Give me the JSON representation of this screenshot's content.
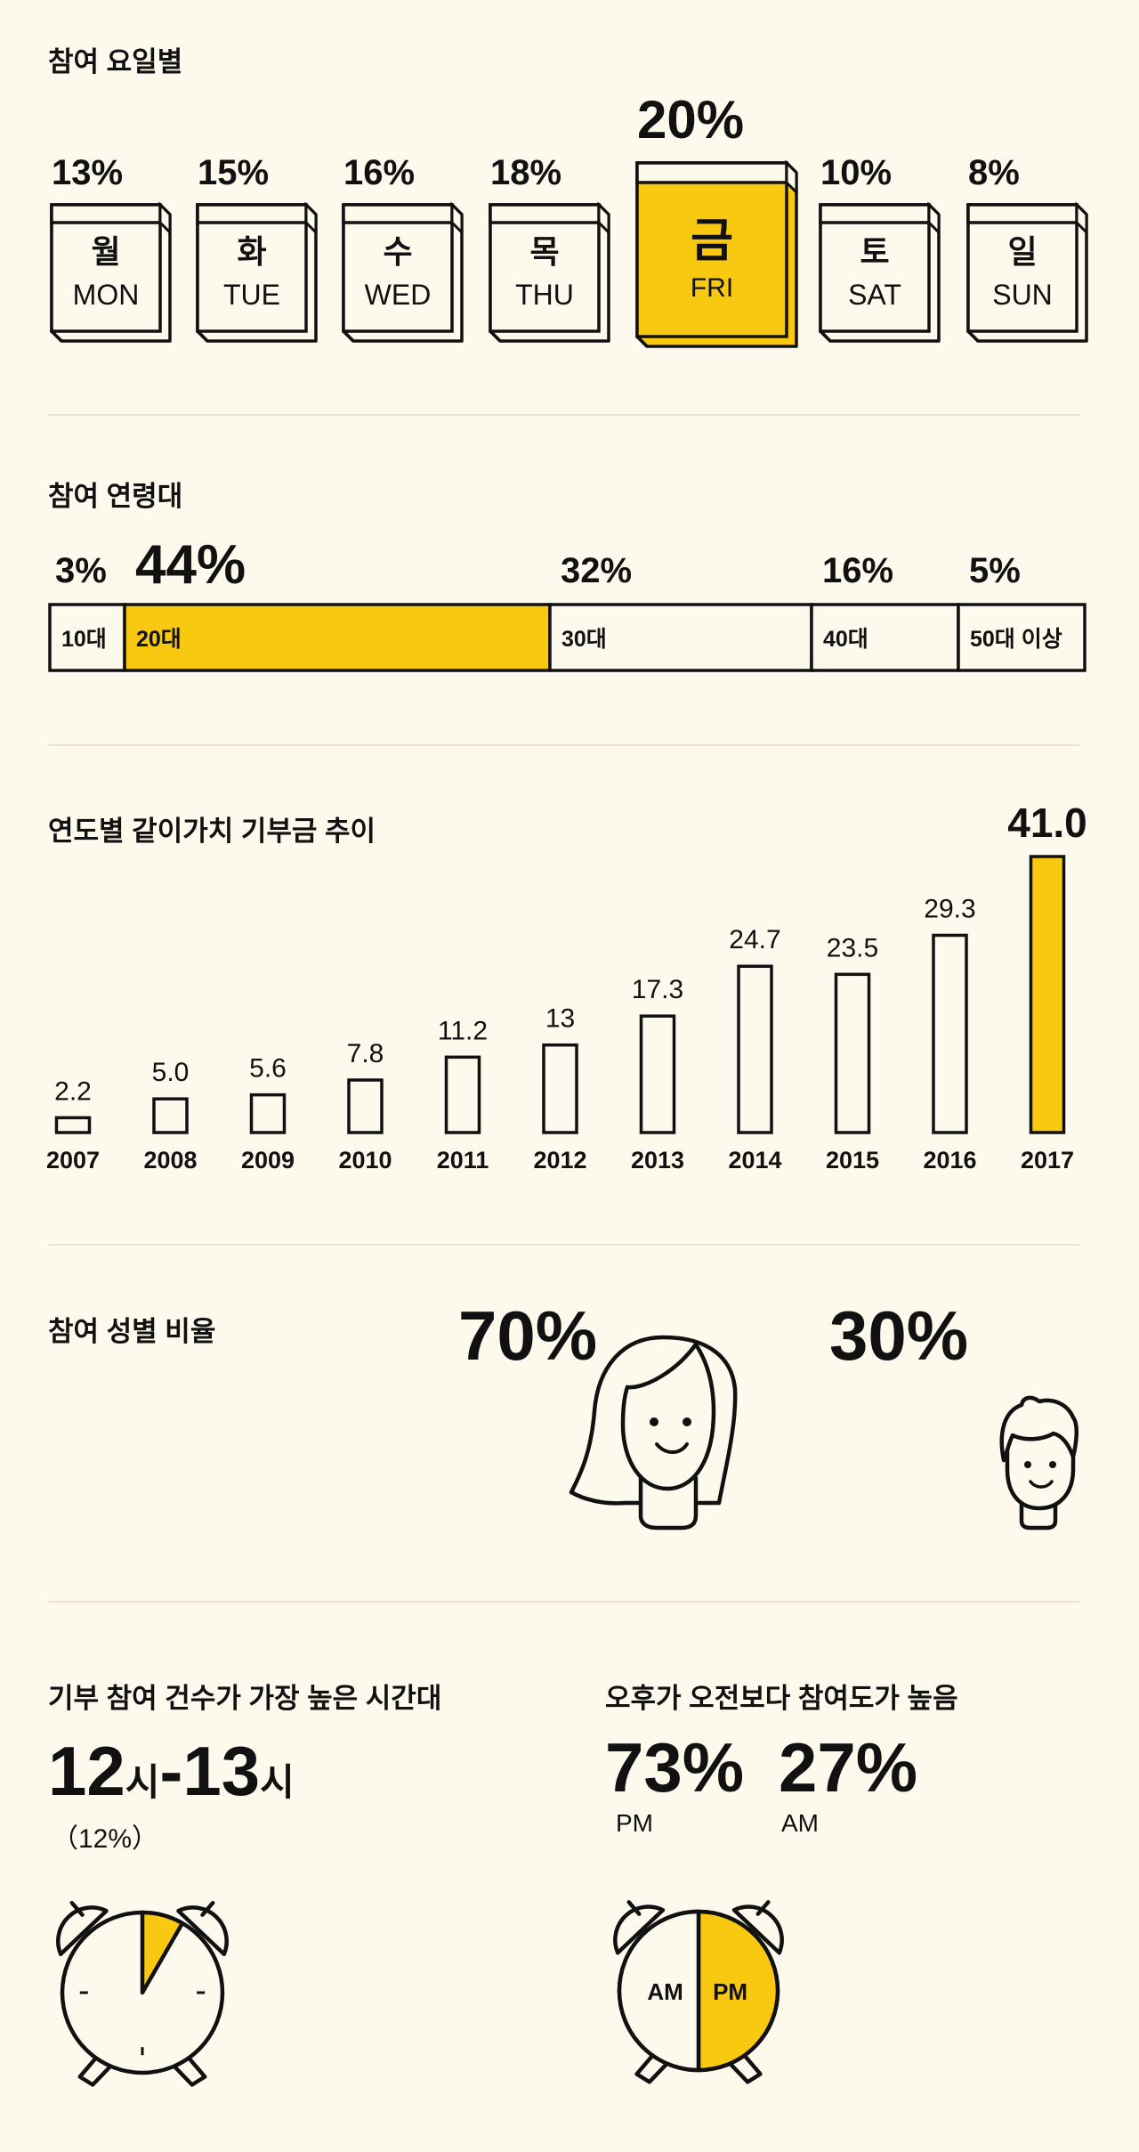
{
  "colors": {
    "accent": "#f9c911",
    "background": "#fdf9ec",
    "ink": "#111111"
  },
  "chart_data": [
    {
      "type": "bar",
      "title": "참여 요일별",
      "categories": [
        {
          "ko": "월",
          "en": "MON"
        },
        {
          "ko": "화",
          "en": "TUE"
        },
        {
          "ko": "수",
          "en": "WED"
        },
        {
          "ko": "목",
          "en": "THU"
        },
        {
          "ko": "금",
          "en": "FRI"
        },
        {
          "ko": "토",
          "en": "SAT"
        },
        {
          "ko": "일",
          "en": "SUN"
        }
      ],
      "values": [
        13,
        15,
        16,
        18,
        20,
        10,
        8
      ],
      "value_labels": [
        "13%",
        "15%",
        "16%",
        "18%",
        "20%",
        "10%",
        "8%"
      ],
      "highlight": "FRI"
    },
    {
      "type": "bar",
      "title": "참여 연령대",
      "stacked": true,
      "categories": [
        "10대",
        "20대",
        "30대",
        "40대",
        "50대 이상"
      ],
      "values": [
        3,
        44,
        32,
        16,
        5
      ],
      "value_labels": [
        "3%",
        "44%",
        "32%",
        "16%",
        "5%"
      ],
      "highlight": "20대"
    },
    {
      "type": "bar",
      "title": "연도별 같이가치 기부금 추이",
      "categories": [
        "2007",
        "2008",
        "2009",
        "2010",
        "2011",
        "2012",
        "2013",
        "2014",
        "2015",
        "2016",
        "2017"
      ],
      "values": [
        2.2,
        5.0,
        5.6,
        7.8,
        11.2,
        13,
        17.3,
        24.7,
        23.5,
        29.3,
        41.0
      ],
      "value_labels": [
        "2.2",
        "5.0",
        "5.6",
        "7.8",
        "11.2",
        "13",
        "17.3",
        "24.7",
        "23.5",
        "29.3",
        "41.0"
      ],
      "ylim": [
        0,
        41
      ],
      "highlight": "2017"
    },
    {
      "type": "pie",
      "title": "참여 성별 비율",
      "categories": [
        "female",
        "male"
      ],
      "values": [
        70,
        30
      ],
      "value_labels": [
        "70%",
        "30%"
      ]
    },
    {
      "type": "pie",
      "title": "기부 참여 건수가 가장 높은 시간대",
      "highlight_range": "12시-13시",
      "value": 12,
      "value_label": "（12%）",
      "peak": {
        "start": "12",
        "sep": "-",
        "end": "13",
        "unit": "시"
      }
    },
    {
      "type": "pie",
      "title": "오후가 오전보다 참여도가 높음",
      "categories": [
        "PM",
        "AM"
      ],
      "values": [
        73,
        27
      ],
      "value_labels": [
        "73%",
        "27%"
      ],
      "slice_labels": [
        "PM",
        "AM"
      ]
    }
  ]
}
